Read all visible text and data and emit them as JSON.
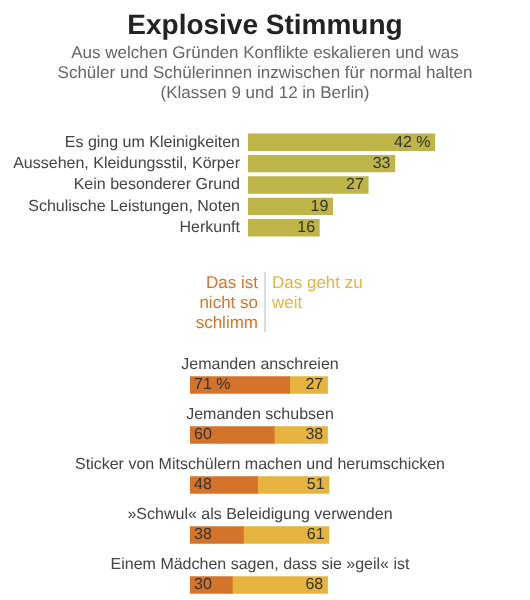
{
  "chart_data": [
    {
      "type": "bar",
      "orientation": "horizontal",
      "title": "Explosive Stimmung",
      "subtitle": "Aus welchen Gründen Konflikte eskalieren und was Schüler und Schülerinnen inzwischen für normal halten (Klassen 9 und 12 in Berlin)",
      "categories": [
        "Es ging um Kleinigkeiten",
        "Aussehen, Kleidungsstil, Körper",
        "Kein besonderer Grund",
        "Schulische Leistungen, Noten",
        "Herkunft"
      ],
      "values": [
        42,
        33,
        27,
        19,
        16
      ],
      "value_labels": [
        "42 %",
        "33",
        "27",
        "19",
        "16"
      ],
      "color": "#bdb548",
      "tick_labels": "y",
      "grid": false
    },
    {
      "type": "bar",
      "orientation": "horizontal",
      "stacked": true,
      "tick_labels": "y",
      "grid": false,
      "categories": [
        "Jemanden anschreien",
        "Jemanden schubsen",
        "Sticker von Mitschülern machen und herumschicken",
        "»Schwul« als Beleidigung verwenden",
        "Einem Mädchen sagen, dass sie »geil« ist"
      ],
      "series": [
        {
          "name": "Das ist nicht so schlimm",
          "color": "#d4742a",
          "values": [
            71,
            60,
            48,
            38,
            30
          ],
          "value_labels": [
            "71 %",
            "60",
            "48",
            "38",
            "30"
          ]
        },
        {
          "name": "Das geht zu weit",
          "color": "#e6b43e",
          "values": [
            27,
            38,
            51,
            61,
            68
          ],
          "value_labels": [
            "27",
            "38",
            "51",
            "61",
            "68"
          ]
        }
      ]
    }
  ]
}
